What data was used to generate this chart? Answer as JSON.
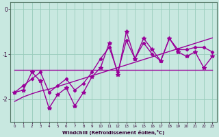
{
  "x": [
    0,
    1,
    2,
    3,
    4,
    5,
    6,
    7,
    8,
    9,
    10,
    11,
    12,
    13,
    14,
    15,
    16,
    17,
    18,
    19,
    20,
    21,
    22,
    23
  ],
  "line_jagged": [
    -1.85,
    -1.8,
    -1.4,
    -1.6,
    -2.2,
    -1.9,
    -1.75,
    -2.15,
    -1.85,
    -1.5,
    -1.3,
    -0.75,
    -1.45,
    -0.5,
    -1.1,
    -0.65,
    -0.9,
    -1.15,
    -0.65,
    -0.95,
    -1.05,
    -0.95,
    -1.3,
    -1.05
  ],
  "line_flat": [
    -1.35,
    -1.35,
    -1.35,
    -1.35,
    -1.35,
    -1.35,
    -1.35,
    -1.35,
    -1.35,
    -1.35,
    -1.35,
    -1.35,
    -1.35,
    -1.35,
    -1.35,
    -1.35,
    -1.35,
    -1.35,
    -1.35,
    -1.35,
    -1.35,
    -1.35,
    -1.35,
    -1.35
  ],
  "line_trend_upper": [
    -1.85,
    -1.7,
    -1.55,
    -1.4,
    -1.85,
    -1.7,
    -1.55,
    -1.8,
    -1.65,
    -1.4,
    -1.1,
    -0.85,
    -1.4,
    -0.7,
    -1.1,
    -0.75,
    -1.0,
    -1.15,
    -0.65,
    -0.9,
    -0.9,
    -0.85,
    -0.85,
    -0.95
  ],
  "line_trend_lower": [
    -2.05,
    -1.95,
    -1.88,
    -1.82,
    -1.78,
    -1.72,
    -1.66,
    -1.6,
    -1.54,
    -1.48,
    -1.42,
    -1.36,
    -1.3,
    -1.24,
    -1.18,
    -1.12,
    -1.06,
    -1.0,
    -0.94,
    -0.88,
    -0.82,
    -0.76,
    -0.7,
    -0.64
  ],
  "bg_color": "#c8e8e0",
  "line_color": "#990099",
  "grid_color": "#99ccbb",
  "xlabel": "Windchill (Refroidissement éolien,°C)",
  "ylim": [
    -2.5,
    0.15
  ],
  "xlim": [
    -0.5,
    23.5
  ],
  "yticks": [
    -2,
    -1,
    0
  ],
  "xticks": [
    0,
    1,
    2,
    3,
    4,
    5,
    6,
    7,
    8,
    9,
    10,
    11,
    12,
    13,
    14,
    15,
    16,
    17,
    18,
    19,
    20,
    21,
    22,
    23
  ]
}
